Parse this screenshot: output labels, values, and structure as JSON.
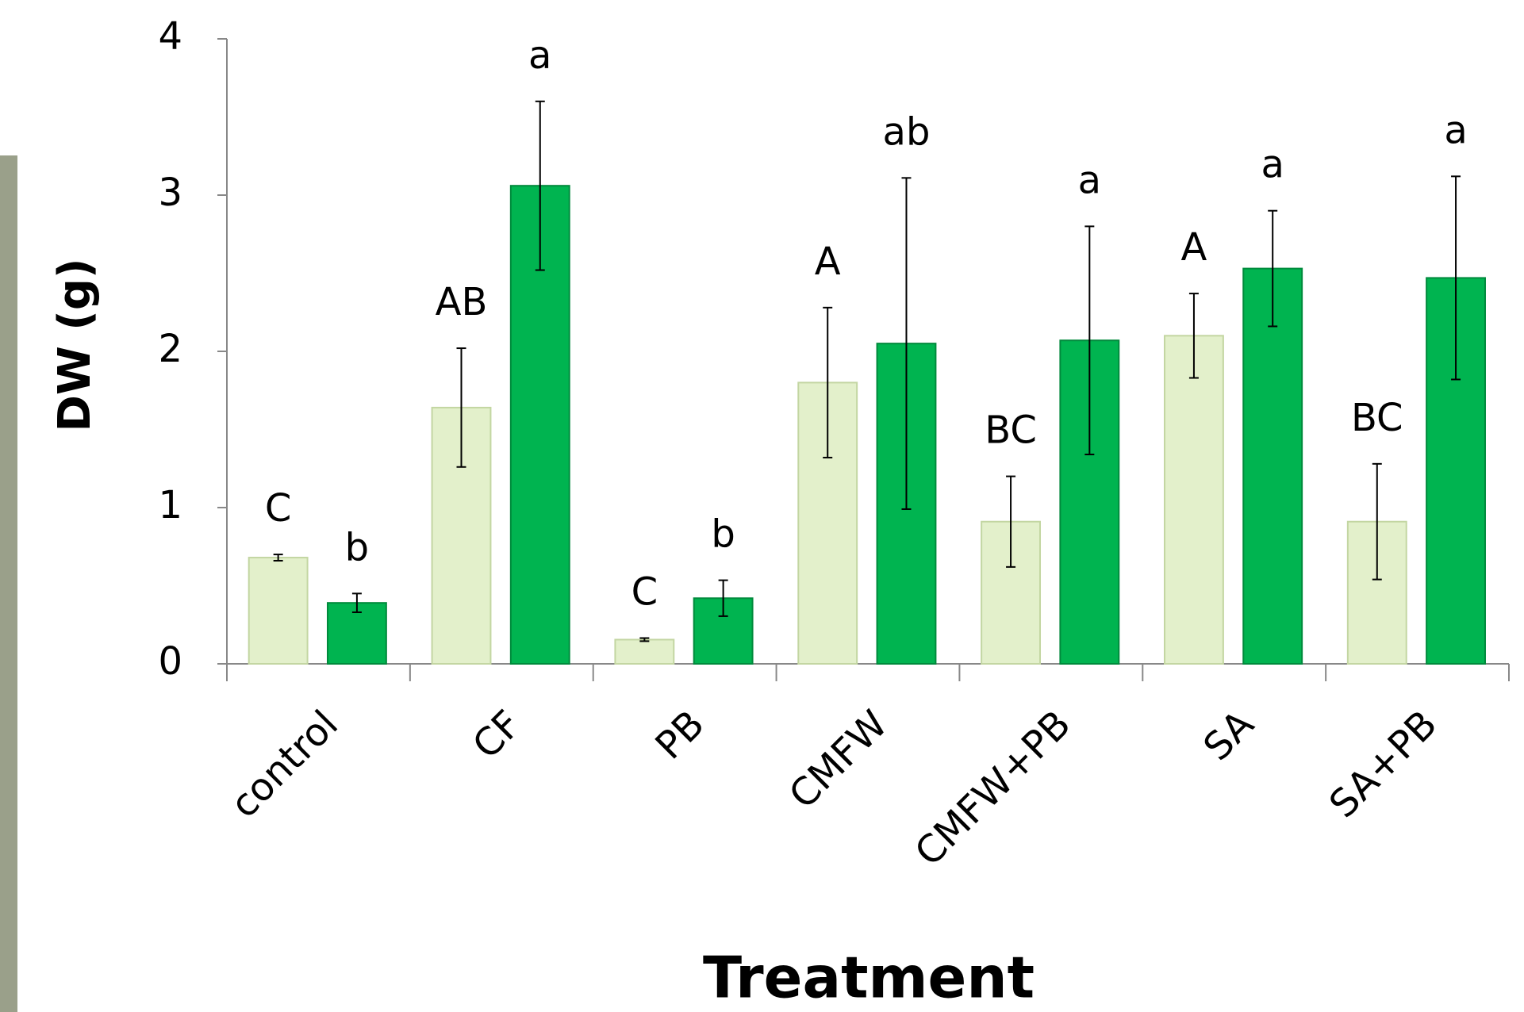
{
  "chart_data": {
    "type": "bar",
    "xlabel": "Treatment",
    "ylabel": "DW (g)",
    "categories": [
      "control",
      "CF",
      "PB",
      "CMFW",
      "CMFW+PB",
      "SA",
      "SA+PB"
    ],
    "series": [
      {
        "color": "#e3f0cb",
        "values": [
          0.68,
          1.64,
          0.155,
          1.8,
          0.91,
          2.1,
          0.91
        ],
        "errors": [
          0.02,
          0.38,
          0.01,
          0.48,
          0.29,
          0.27,
          0.37
        ],
        "annotations": [
          "C",
          "AB",
          "C",
          "A",
          "BC",
          "A",
          "BC"
        ]
      },
      {
        "color": "#00b450",
        "values": [
          0.39,
          3.06,
          0.42,
          2.05,
          2.07,
          2.53,
          2.47
        ],
        "errors": [
          0.06,
          0.54,
          0.115,
          1.06,
          0.73,
          0.37,
          0.65
        ],
        "annotations": [
          "b",
          "a",
          "b",
          "ab",
          "a",
          "a",
          "a"
        ]
      }
    ],
    "ylim": [
      0,
      4
    ],
    "yticks": [
      0,
      1,
      2,
      3,
      4
    ]
  }
}
